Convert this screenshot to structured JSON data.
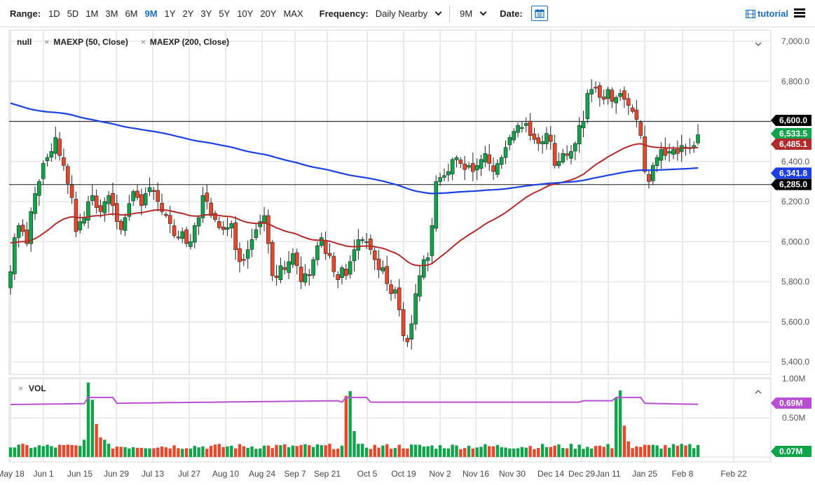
{
  "toolbar": {
    "range_label": "Range:",
    "ranges": [
      "1D",
      "5D",
      "1M",
      "3M",
      "6M",
      "9M",
      "1Y",
      "2Y",
      "3Y",
      "5Y",
      "10Y",
      "20Y",
      "MAX"
    ],
    "active_range": "9M",
    "frequency_label": "Frequency:",
    "frequency_value": "Daily Nearby",
    "period_value": "9M",
    "date_label": "Date:",
    "tutorial_label": "tutorial"
  },
  "legend": {
    "symbol": "null",
    "studies": [
      "MAEXP (50, Close)",
      "MAEXP (200, Close)"
    ]
  },
  "volume_legend": {
    "label": "VOL"
  },
  "colors": {
    "up": "#0fa34a",
    "down": "#e8472b",
    "ma50": "#b22b2b",
    "ma200": "#1b3fe0",
    "vol_avg": "#b84fd0",
    "level_line": "#333333"
  },
  "price_axis": {
    "ticks": [
      "7,000.0",
      "6,800.0",
      "6,400.0",
      "6,200.0",
      "6,000.0",
      "5,800.0",
      "5,600.0",
      "5,400.0"
    ],
    "badges": [
      {
        "label": "6,600.0",
        "value": 6600,
        "color": "#000000"
      },
      {
        "label": "6,533.5",
        "value": 6533.5,
        "color": "#0fa34a"
      },
      {
        "label": "6,485.1",
        "value": 6485.1,
        "color": "#b22b2b"
      },
      {
        "label": "6,341.8",
        "value": 6341.8,
        "color": "#1b3fe0"
      },
      {
        "label": "6,285.0",
        "value": 6285,
        "color": "#000000"
      }
    ]
  },
  "volume_axis": {
    "ticks": [
      "1.00M",
      "0.50M"
    ],
    "badges": [
      {
        "label": "0.69M",
        "color": "#b84fd0"
      },
      {
        "label": "0.07M",
        "color": "#0fa34a"
      }
    ]
  },
  "chart_data": {
    "type": "candlestick",
    "title": "",
    "xlabel": "",
    "ylabel": "",
    "ylim": [
      5400,
      7000
    ],
    "x_tick_labels": [
      "May 18",
      "Jun 1",
      "Jun 15",
      "Jun 29",
      "Jul 13",
      "Jul 27",
      "Aug 10",
      "Aug 24",
      "Sep 7",
      "Sep 21",
      "Oct 5",
      "Oct 19",
      "Nov 2",
      "Nov 16",
      "Nov 30",
      "Dec 14",
      "Dec 29",
      "Jan 11",
      "Jan 25",
      "Feb 8",
      "Feb 22"
    ],
    "horizontal_levels": [
      6600,
      6285
    ],
    "last_close": 6533.5,
    "ma50_last": 6485.1,
    "ma200_last": 6341.8,
    "approx_closes": [
      5850,
      6020,
      6080,
      6050,
      5990,
      6150,
      6240,
      6300,
      6390,
      6420,
      6450,
      6520,
      6430,
      6380,
      6290,
      6220,
      6050,
      6100,
      6120,
      6200,
      6230,
      6170,
      6150,
      6200,
      6230,
      6180,
      6100,
      6060,
      6120,
      6190,
      6250,
      6220,
      6180,
      6240,
      6270,
      6250,
      6200,
      6150,
      6130,
      6090,
      6030,
      6020,
      6050,
      5990,
      6000,
      6080,
      6120,
      6230,
      6200,
      6130,
      6110,
      6070,
      6060,
      6070,
      6090,
      5960,
      5900,
      5910,
      5960,
      6010,
      6060,
      6100,
      6130,
      5990,
      5830,
      5820,
      5880,
      5860,
      5900,
      5940,
      5880,
      5800,
      5840,
      5830,
      5910,
      5980,
      6020,
      5940,
      5930,
      5850,
      5810,
      5870,
      5830,
      5900,
      5960,
      6010,
      6010,
      6000,
      5960,
      5910,
      5860,
      5870,
      5790,
      5740,
      5760,
      5660,
      5530,
      5500,
      5590,
      5740,
      5830,
      5910,
      5920,
      6080,
      6300,
      6320,
      6330,
      6350,
      6410,
      6420,
      6390,
      6360,
      6380,
      6350,
      6380,
      6410,
      6440,
      6390,
      6350,
      6390,
      6420,
      6470,
      6520,
      6550,
      6580,
      6570,
      6590,
      6530,
      6510,
      6490,
      6500,
      6540,
      6500,
      6380,
      6400,
      6440,
      6430,
      6450,
      6490,
      6580,
      6600,
      6740,
      6760,
      6770,
      6720,
      6710,
      6760,
      6700,
      6720,
      6740,
      6710,
      6680,
      6650,
      6610,
      6530,
      6350,
      6300,
      6380,
      6420,
      6460,
      6430,
      6450,
      6460,
      6440,
      6480,
      6470,
      6470,
      6480,
      6533.5
    ],
    "volume_avg_M": 0.69,
    "volume_last_M": 0.07,
    "volume_ylim_M": [
      0,
      1.0
    ]
  }
}
